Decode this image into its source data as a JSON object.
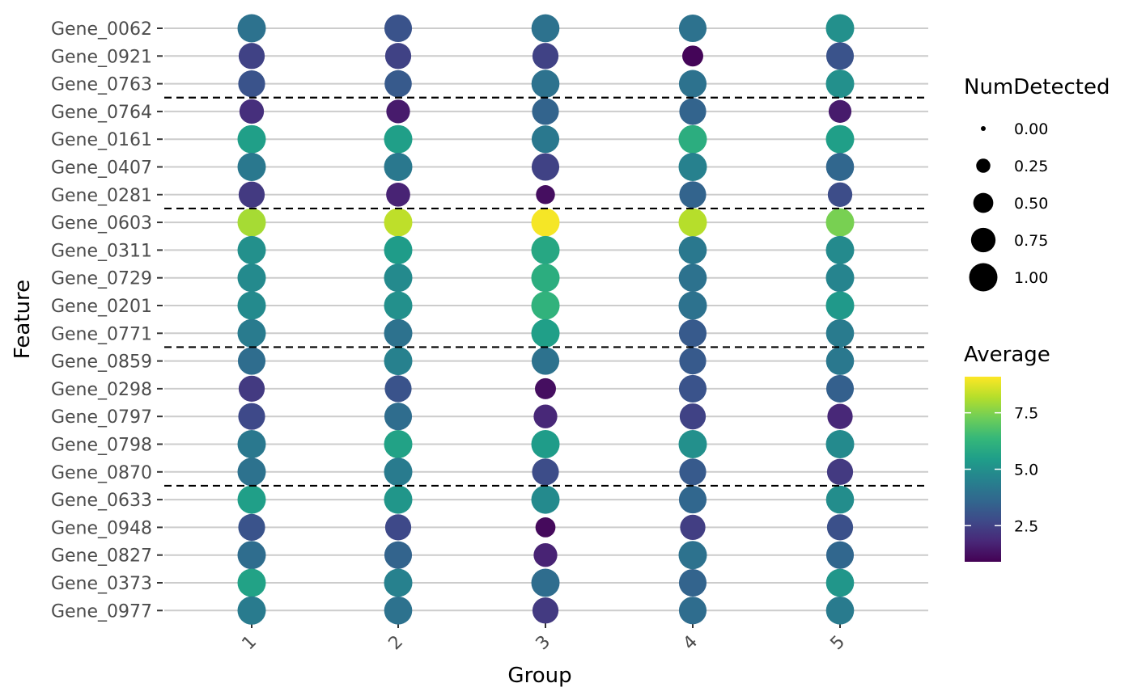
{
  "chart_data": {
    "type": "dotplot",
    "xlabel": "Group",
    "ylabel": "Feature",
    "categories": [
      "1",
      "2",
      "3",
      "4",
      "5"
    ],
    "features": [
      "Gene_0062",
      "Gene_0921",
      "Gene_0763",
      "Gene_0764",
      "Gene_0161",
      "Gene_0407",
      "Gene_0281",
      "Gene_0603",
      "Gene_0311",
      "Gene_0729",
      "Gene_0201",
      "Gene_0771",
      "Gene_0859",
      "Gene_0298",
      "Gene_0797",
      "Gene_0798",
      "Gene_0870",
      "Gene_0633",
      "Gene_0948",
      "Gene_0827",
      "Gene_0373",
      "Gene_0977"
    ],
    "average": [
      [
        4.0,
        3.0,
        4.0,
        4.0,
        5.0
      ],
      [
        2.5,
        2.5,
        2.5,
        1.0,
        3.0
      ],
      [
        3.0,
        3.2,
        4.0,
        4.0,
        5.0
      ],
      [
        2.0,
        1.5,
        3.5,
        3.5,
        1.5
      ],
      [
        5.5,
        5.5,
        4.2,
        6.0,
        5.5
      ],
      [
        4.2,
        4.2,
        2.5,
        4.5,
        3.6
      ],
      [
        2.3,
        1.7,
        1.2,
        3.5,
        2.8
      ],
      [
        8.0,
        8.3,
        9.0,
        8.2,
        7.4
      ],
      [
        5.0,
        5.4,
        5.8,
        4.2,
        4.8
      ],
      [
        4.8,
        4.8,
        6.0,
        4.0,
        4.6
      ],
      [
        4.8,
        5.0,
        6.2,
        4.0,
        5.3
      ],
      [
        4.3,
        4.0,
        5.5,
        3.2,
        4.3
      ],
      [
        3.8,
        4.5,
        4.0,
        3.2,
        4.2
      ],
      [
        2.3,
        3.0,
        1.2,
        3.0,
        3.4
      ],
      [
        2.7,
        3.8,
        1.8,
        2.5,
        1.8
      ],
      [
        4.2,
        5.6,
        5.4,
        5.0,
        4.8
      ],
      [
        4.0,
        4.3,
        2.8,
        3.2,
        2.3
      ],
      [
        5.5,
        5.2,
        4.8,
        3.6,
        4.9
      ],
      [
        3.0,
        2.7,
        1.1,
        2.4,
        2.9
      ],
      [
        3.8,
        3.5,
        1.7,
        4.0,
        3.6
      ],
      [
        5.6,
        4.5,
        3.8,
        3.5,
        5.2
      ],
      [
        4.3,
        4.0,
        2.3,
        3.8,
        4.3
      ]
    ],
    "num_detected": [
      [
        1.0,
        0.95,
        0.98,
        0.95,
        1.0
      ],
      [
        0.85,
        0.85,
        0.85,
        0.55,
        0.95
      ],
      [
        0.9,
        0.92,
        0.98,
        0.95,
        1.0
      ],
      [
        0.75,
        0.7,
        0.9,
        0.9,
        0.65
      ],
      [
        1.0,
        1.0,
        0.95,
        1.0,
        1.0
      ],
      [
        1.0,
        1.0,
        0.95,
        1.0,
        0.98
      ],
      [
        0.85,
        0.72,
        0.45,
        0.9,
        0.75
      ],
      [
        1.0,
        1.0,
        1.0,
        1.0,
        1.0
      ],
      [
        1.0,
        1.0,
        1.0,
        0.98,
        1.0
      ],
      [
        1.0,
        1.0,
        1.0,
        0.98,
        1.0
      ],
      [
        1.0,
        1.0,
        1.0,
        1.0,
        1.0
      ],
      [
        1.0,
        1.0,
        1.0,
        0.95,
        0.98
      ],
      [
        0.95,
        1.0,
        0.95,
        0.9,
        0.98
      ],
      [
        0.85,
        0.9,
        0.55,
        0.95,
        0.95
      ],
      [
        0.9,
        0.95,
        0.7,
        0.85,
        0.8
      ],
      [
        1.0,
        1.0,
        1.0,
        1.0,
        1.0
      ],
      [
        1.0,
        1.0,
        0.9,
        0.9,
        0.85
      ],
      [
        1.0,
        1.0,
        1.0,
        0.95,
        0.98
      ],
      [
        0.9,
        0.85,
        0.5,
        0.8,
        0.85
      ],
      [
        1.0,
        0.95,
        0.7,
        1.0,
        0.95
      ],
      [
        1.0,
        1.0,
        1.0,
        0.95,
        0.98
      ],
      [
        1.0,
        0.98,
        0.85,
        0.95,
        0.98
      ]
    ],
    "separators_after_rows": [
      3,
      7,
      12,
      17
    ],
    "legends": {
      "size": {
        "title": "NumDetected",
        "labels": [
          "0.00",
          "0.25",
          "0.50",
          "0.75",
          "1.00"
        ],
        "values": [
          0,
          0.25,
          0.5,
          0.75,
          1.0
        ]
      },
      "color": {
        "title": "Average",
        "labels": [
          "2.5",
          "5.0",
          "7.5"
        ],
        "values": [
          2.5,
          5.0,
          7.5
        ],
        "range": [
          0.9,
          9.1
        ],
        "palette": "viridis"
      }
    },
    "colors": {
      "gridline": "#cccccc",
      "separator": "#000000",
      "tick_label": "#4d4d4d",
      "viridis": [
        "#440154",
        "#482878",
        "#3e4a89",
        "#31688e",
        "#26828e",
        "#1f9e89",
        "#35b779",
        "#6ece58",
        "#b5de2b",
        "#fde725"
      ]
    }
  }
}
